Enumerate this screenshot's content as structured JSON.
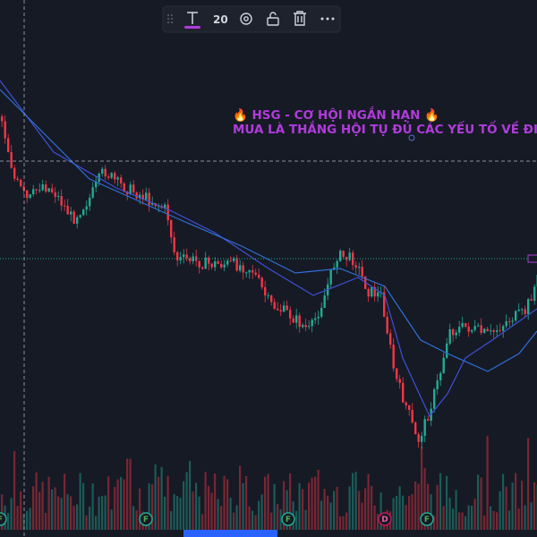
{
  "toolbar": {
    "font_size": "20"
  },
  "annotation": {
    "lines": [
      "🔥 HSG - CƠ HỘI NGẮN HẠN 🔥",
      "MUA LÀ THẮNG HỘI TỤ ĐỦ CÁC YẾU TỐ VỀ ĐI"
    ]
  },
  "events": [
    "F",
    "F",
    "F",
    "D",
    "F"
  ]
}
